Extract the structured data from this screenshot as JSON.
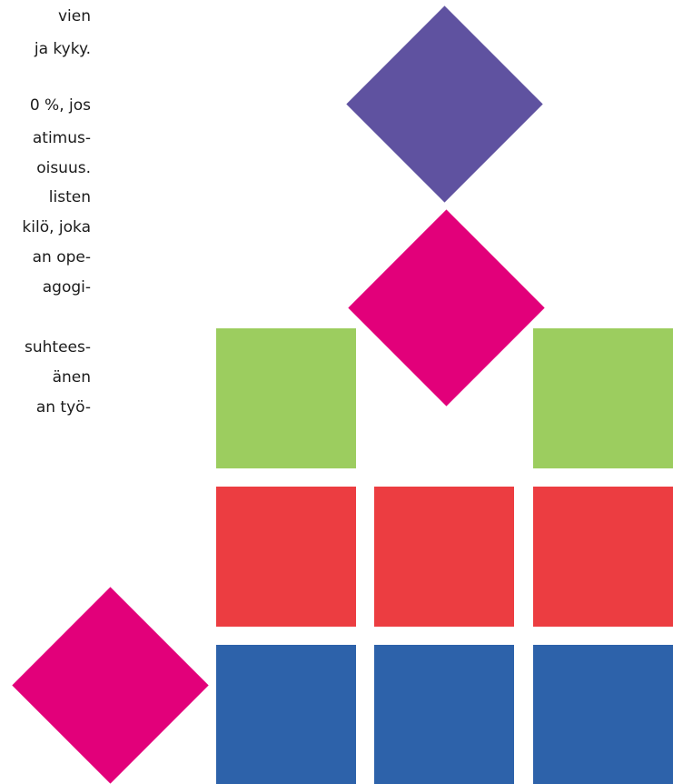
{
  "text_fragments": [
    "vien",
    "ja kyky.",
    "0 %, jos",
    "atimus-",
    "oisuus.",
    "listen",
    "kilö, joka",
    "an ope-",
    "agogi-",
    "suhtees-",
    "änen",
    "an työ-"
  ],
  "colors": {
    "purple": "#5f52a0",
    "magenta": "#e2007a",
    "green": "#9ccd5f",
    "red": "#ec3d41",
    "blue": "#2d62aa",
    "text": "#1b1b1b"
  }
}
